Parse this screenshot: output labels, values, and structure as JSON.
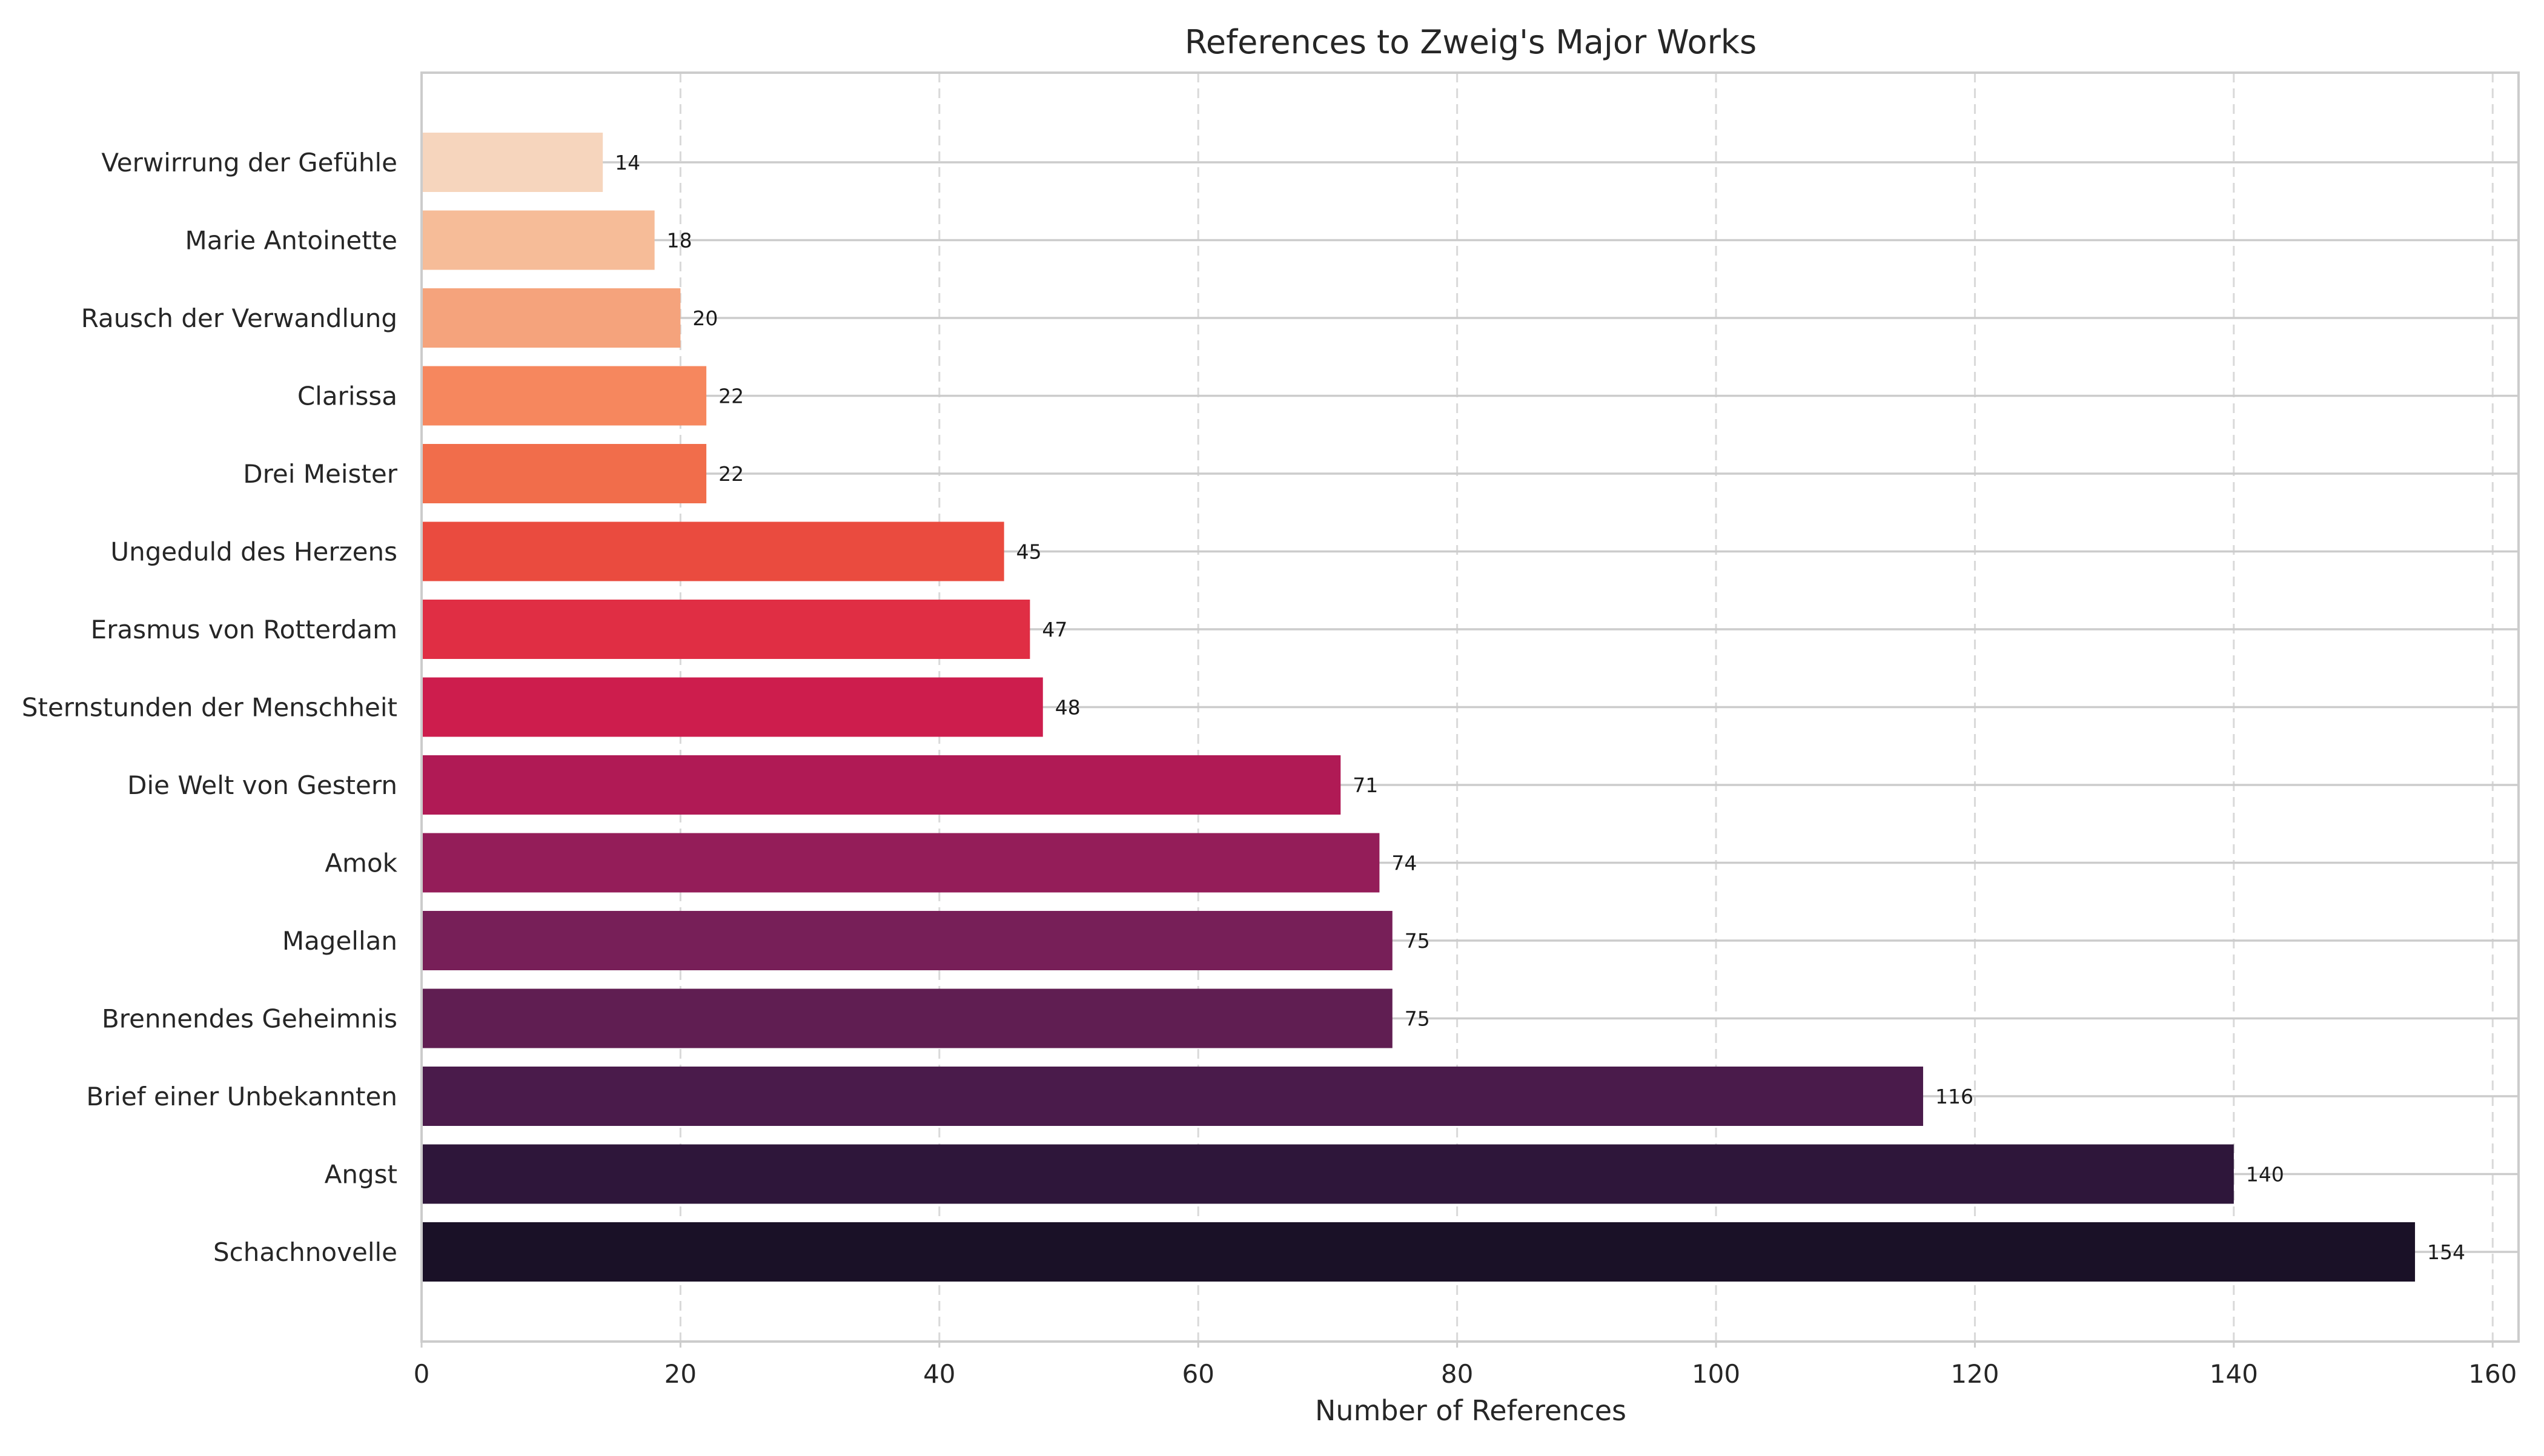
{
  "chart_data": {
    "type": "bar",
    "orientation": "horizontal",
    "title": "References to Zweig's Major Works",
    "xlabel": "Number of References",
    "ylabel": "",
    "xlim": [
      0,
      162
    ],
    "xticks": [
      0,
      20,
      40,
      60,
      80,
      100,
      120,
      140,
      160
    ],
    "grid": {
      "x": "dashed",
      "y": "solid"
    },
    "categories": [
      "Schachnovelle",
      "Angst",
      "Brief einer Unbekannten",
      "Brennendes Geheimnis",
      "Magellan",
      "Amok",
      "Die Welt von Gestern",
      "Sternstunden der Menschheit",
      "Erasmus von Rotterdam",
      "Ungeduld des Herzens",
      "Drei Meister",
      "Clarissa",
      "Rausch der Verwandlung",
      "Marie Antoinette",
      "Verwirrung der Gefühle"
    ],
    "values": [
      154,
      140,
      116,
      75,
      75,
      74,
      71,
      48,
      47,
      45,
      22,
      22,
      20,
      18,
      14
    ],
    "colors": [
      "#1a1127",
      "#2e163a",
      "#4a1b4b",
      "#601e52",
      "#771f58",
      "#941d59",
      "#b01a55",
      "#cd1d4d",
      "#e02e44",
      "#ea4b3f",
      "#f16d4b",
      "#f6875e",
      "#f5a37c",
      "#f6bc98",
      "#f6d5bd"
    ]
  }
}
